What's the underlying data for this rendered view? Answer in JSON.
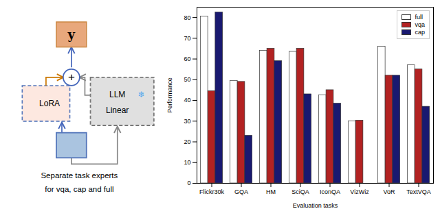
{
  "chart_data": {
    "type": "bar",
    "categories": [
      "Flickr30k",
      "GQA",
      "HM",
      "SciQA",
      "IconQA",
      "VizWiz",
      "VoR",
      "TextVQA"
    ],
    "series": [
      {
        "name": "full",
        "color": "#ffffff",
        "values": [
          80.5,
          49.5,
          64.0,
          63.5,
          42.5,
          30.0,
          66.0,
          57.0
        ]
      },
      {
        "name": "vqa",
        "color": "#b22222",
        "values": [
          44.5,
          49.0,
          65.0,
          65.0,
          45.0,
          30.3,
          52.0,
          55.0
        ]
      },
      {
        "name": "cap",
        "color": "#191970",
        "values": [
          82.5,
          23.0,
          59.0,
          43.0,
          38.5,
          0.0,
          52.0,
          37.0
        ]
      }
    ],
    "xlabel": "Evaluation tasks",
    "ylabel": "Performance",
    "ylim": [
      0,
      85
    ],
    "yticks": [
      0,
      10,
      20,
      30,
      40,
      50,
      60,
      70,
      80
    ],
    "grid": false,
    "legend": "upper right",
    "annotations": [
      "y",
      "+",
      "LoRA",
      "LLM",
      "Linear",
      "❄",
      "Separate task experts",
      "for vqa, cap and full"
    ]
  }
}
